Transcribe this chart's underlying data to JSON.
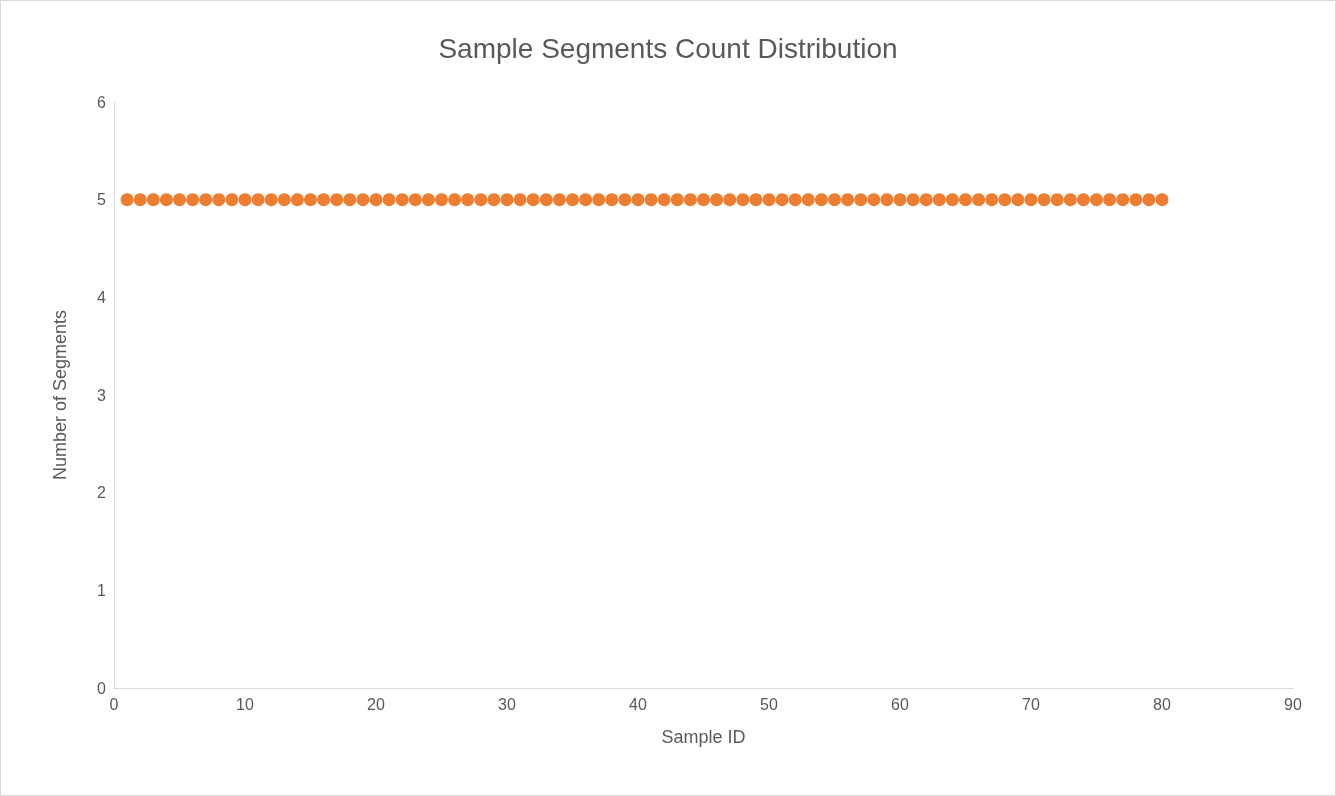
{
  "chart_data": {
    "type": "scatter",
    "title": "Sample Segments Count Distribution",
    "xlabel": "Sample ID",
    "ylabel": "Number of Segments",
    "x": [
      1,
      2,
      3,
      4,
      5,
      6,
      7,
      8,
      9,
      10,
      11,
      12,
      13,
      14,
      15,
      16,
      17,
      18,
      19,
      20,
      21,
      22,
      23,
      24,
      25,
      26,
      27,
      28,
      29,
      30,
      31,
      32,
      33,
      34,
      35,
      36,
      37,
      38,
      39,
      40,
      41,
      42,
      43,
      44,
      45,
      46,
      47,
      48,
      49,
      50,
      51,
      52,
      53,
      54,
      55,
      56,
      57,
      58,
      59,
      60,
      61,
      62,
      63,
      64,
      65,
      66,
      67,
      68,
      69,
      70,
      71,
      72,
      73,
      74,
      75,
      76,
      77,
      78,
      79,
      80
    ],
    "values": [
      5,
      5,
      5,
      5,
      5,
      5,
      5,
      5,
      5,
      5,
      5,
      5,
      5,
      5,
      5,
      5,
      5,
      5,
      5,
      5,
      5,
      5,
      5,
      5,
      5,
      5,
      5,
      5,
      5,
      5,
      5,
      5,
      5,
      5,
      5,
      5,
      5,
      5,
      5,
      5,
      5,
      5,
      5,
      5,
      5,
      5,
      5,
      5,
      5,
      5,
      5,
      5,
      5,
      5,
      5,
      5,
      5,
      5,
      5,
      5,
      5,
      5,
      5,
      5,
      5,
      5,
      5,
      5,
      5,
      5,
      5,
      5,
      5,
      5,
      5,
      5,
      5,
      5,
      5,
      5
    ],
    "color": "#ed7d31",
    "marker": "circle",
    "xlim": [
      0,
      90
    ],
    "xticks": [
      0,
      10,
      20,
      30,
      40,
      50,
      60,
      70,
      80,
      90
    ],
    "ylim": [
      0,
      6
    ],
    "yticks": [
      0,
      1,
      2,
      3,
      4,
      5,
      6
    ],
    "grid": false
  }
}
